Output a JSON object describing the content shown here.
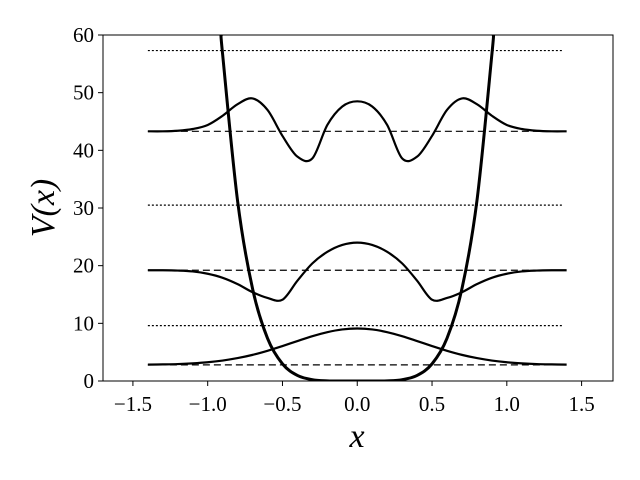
{
  "chart_data": {
    "type": "line",
    "xlabel": "x",
    "ylabel": "V(x)",
    "xlim": [
      -1.7,
      1.71
    ],
    "ylim": [
      0,
      60
    ],
    "xticks": [
      {
        "value": -1.5,
        "label": "−1.5"
      },
      {
        "value": -1.0,
        "label": "−1.0"
      },
      {
        "value": -0.5,
        "label": "−0.5"
      },
      {
        "value": 0.0,
        "label": "0.0"
      },
      0.5,
      {
        "value": 1.0,
        "label": "1.0"
      },
      1.5
    ],
    "yticks": [
      0,
      10,
      20,
      30,
      40,
      50,
      60
    ],
    "series": [
      {
        "style": "solid",
        "width": 3,
        "color": "#000000",
        "x": [
          -0.91,
          -0.9,
          -0.8,
          -0.7,
          -0.6,
          -0.5,
          -0.4,
          -0.3,
          -0.2,
          -0.1,
          0,
          0.1,
          0.2,
          0.3,
          0.4,
          0.5,
          0.6,
          0.7,
          0.8,
          0.9,
          0.91
        ],
        "values": [
          60,
          56.6,
          31.2,
          16.0,
          7.4,
          2.97,
          0.97,
          0.23,
          0.03,
          0,
          0,
          0,
          0.03,
          0.23,
          0.97,
          2.97,
          7.4,
          16.0,
          31.2,
          56.6,
          60
        ]
      },
      {
        "style": "dashed",
        "width": 1.2,
        "color": "#000000",
        "x": [
          -1.4,
          1.38
        ],
        "values": [
          2.8,
          2.8
        ]
      },
      {
        "style": "dotted",
        "width": 1.2,
        "color": "#000000",
        "x": [
          -1.4,
          1.37
        ],
        "values": [
          9.6,
          9.6
        ]
      },
      {
        "style": "dashed",
        "width": 1.2,
        "color": "#000000",
        "x": [
          -1.4,
          1.38
        ],
        "values": [
          19.2,
          19.2
        ]
      },
      {
        "style": "dotted",
        "width": 1.2,
        "color": "#000000",
        "x": [
          -1.4,
          1.37
        ],
        "values": [
          30.5,
          30.5
        ]
      },
      {
        "style": "dashed",
        "width": 1.2,
        "color": "#000000",
        "x": [
          -1.4,
          1.38
        ],
        "values": [
          43.3,
          43.3
        ]
      },
      {
        "style": "dotted",
        "width": 1.2,
        "color": "#000000",
        "x": [
          -1.4,
          1.37
        ],
        "values": [
          57.3,
          57.3
        ]
      },
      {
        "style": "solid",
        "width": 2.2,
        "color": "#000000",
        "x": [
          -1.4,
          -1.3,
          -1.2,
          -1.1,
          -1.0,
          -0.9,
          -0.8,
          -0.7,
          -0.6,
          -0.5,
          -0.4,
          -0.3,
          -0.2,
          -0.1,
          0,
          0.1,
          0.2,
          0.3,
          0.4,
          0.5,
          0.6,
          0.7,
          0.8,
          0.9,
          1.0,
          1.1,
          1.2,
          1.3,
          1.4
        ],
        "values": [
          2.84,
          2.88,
          2.94,
          3.06,
          3.25,
          3.55,
          3.97,
          4.53,
          5.24,
          6.06,
          6.93,
          7.77,
          8.47,
          8.94,
          9.1,
          8.94,
          8.47,
          7.77,
          6.93,
          6.06,
          5.24,
          4.53,
          3.97,
          3.55,
          3.25,
          3.06,
          2.94,
          2.88,
          2.84
        ]
      },
      {
        "style": "solid",
        "width": 2.2,
        "color": "#000000",
        "x": [
          -1.4,
          -1.3,
          -1.2,
          -1.1,
          -1.0,
          -0.9,
          -0.8,
          -0.7,
          -0.6,
          -0.5,
          -0.4,
          -0.3,
          -0.2,
          -0.1,
          0,
          0.1,
          0.2,
          0.3,
          0.4,
          0.5,
          0.6,
          0.7,
          0.8,
          0.9,
          1.0,
          1.1,
          1.2,
          1.3,
          1.4
        ],
        "values": [
          19.2,
          19.2,
          19.15,
          19.0,
          18.6,
          17.9,
          16.8,
          15.4,
          14.4,
          14.1,
          17.4,
          20.4,
          22.4,
          23.6,
          24.0,
          23.6,
          22.4,
          20.4,
          17.4,
          14.1,
          14.4,
          15.4,
          16.8,
          17.9,
          18.6,
          19.0,
          19.15,
          19.2,
          19.2
        ]
      },
      {
        "style": "solid",
        "width": 2.2,
        "color": "#000000",
        "x": [
          -1.4,
          -1.3,
          -1.2,
          -1.1,
          -1.0,
          -0.9,
          -0.8,
          -0.7,
          -0.6,
          -0.5,
          -0.4,
          -0.3,
          -0.2,
          -0.1,
          0,
          0.1,
          0.2,
          0.3,
          0.4,
          0.5,
          0.6,
          0.7,
          0.8,
          0.9,
          1.0,
          1.1,
          1.2,
          1.3,
          1.4
        ],
        "values": [
          43.3,
          43.3,
          43.4,
          43.7,
          44.4,
          46.0,
          48.0,
          49.0,
          47.0,
          42.5,
          38.9,
          38.6,
          44.4,
          47.6,
          48.5,
          47.6,
          44.4,
          38.6,
          38.9,
          42.5,
          47.0,
          49.0,
          48.0,
          46.0,
          44.4,
          43.7,
          43.4,
          43.3,
          43.3
        ]
      }
    ]
  }
}
